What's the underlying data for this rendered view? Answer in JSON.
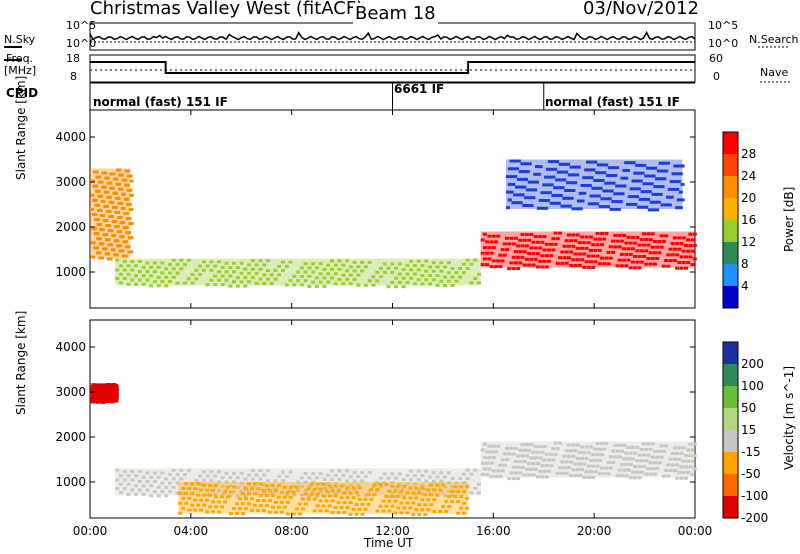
{
  "header": {
    "station_title": "Christmas Valley West (fitACF)",
    "beam": "Beam 18",
    "date": "03/Nov/2012"
  },
  "top_panels": {
    "nsky_label": "N.Sky",
    "nsearch_label": "N.Search",
    "nsky_ticks": [
      "10^5",
      "10^0"
    ],
    "nsearch_ticks": [
      "10^5",
      "10^0"
    ],
    "freq_label": "Freq.",
    "freq_unit": "[MHz]",
    "freq_ticks": [
      "18",
      "8"
    ],
    "nave_label": "Nave",
    "nave_ticks": [
      "60",
      "0"
    ],
    "cpid_label": "CPID",
    "cpid_segments": [
      {
        "label": "normal (fast) 151 IF",
        "start": 0,
        "end": 12
      },
      {
        "label": "6661 IF",
        "start": 12,
        "end": 18
      },
      {
        "label": "normal (fast) 151 IF",
        "start": 18,
        "end": 24
      }
    ]
  },
  "chart_data": [
    {
      "type": "heatmap",
      "quantity": "Power",
      "xlabel": "Time UT",
      "ylabel": "Slant Range [km]",
      "xlim": [
        0,
        24
      ],
      "ylim": [
        200,
        4600
      ],
      "x_ticks": [
        "00:00",
        "04:00",
        "08:00",
        "12:00",
        "16:00",
        "20:00",
        "00:00"
      ],
      "y_ticks": [
        1000,
        2000,
        3000,
        4000
      ],
      "colorbar": {
        "label": "Power [dB]",
        "ticks": [
          "28",
          "24",
          "20",
          "16",
          "12",
          "8",
          "4"
        ],
        "colors": [
          "#ff0000",
          "#ff4500",
          "#ff8c00",
          "#ffb300",
          "#9acd32",
          "#2e8b57",
          "#1e90ff",
          "#0000cd"
        ]
      },
      "features": [
        {
          "name": "main scatter band",
          "time_range": [
            1.0,
            15.5
          ],
          "range_km": [
            700,
            1300
          ],
          "power_db": 16
        },
        {
          "name": "dawn echoes",
          "time_range": [
            0.0,
            1.6
          ],
          "range_km": [
            1300,
            3300
          ],
          "power_db": 22
        },
        {
          "name": "post-16UT strong band",
          "time_range": [
            15.5,
            24.0
          ],
          "range_km": [
            1100,
            1900
          ],
          "power_db": 28
        },
        {
          "name": "evening arc",
          "time_range": [
            16.5,
            23.5
          ],
          "range_km": [
            2400,
            3500
          ],
          "power_db": 6
        }
      ]
    },
    {
      "type": "heatmap",
      "quantity": "Velocity",
      "xlabel": "Time UT",
      "ylabel": "Slant Range [km]",
      "xlim": [
        0,
        24
      ],
      "ylim": [
        200,
        4600
      ],
      "x_ticks": [
        "00:00",
        "04:00",
        "08:00",
        "12:00",
        "16:00",
        "20:00",
        "00:00"
      ],
      "y_ticks": [
        1000,
        2000,
        3000,
        4000
      ],
      "colorbar": {
        "label": "Velocity [m s^-1]",
        "ticks": [
          "200",
          "100",
          "50",
          "15",
          "-15",
          "-50",
          "-100",
          "-200"
        ],
        "colors": [
          "#1e2fa0",
          "#2e8b57",
          "#6abf3a",
          "#b0d880",
          "#c8c8c0",
          "#ffa500",
          "#ff6a00",
          "#e00000"
        ]
      },
      "features": [
        {
          "name": "ground scatter band",
          "time_range": [
            1.0,
            15.5
          ],
          "range_km": [
            700,
            1300
          ],
          "velocity": 0
        },
        {
          "name": "dawn echoes",
          "time_range": [
            0.0,
            1.0
          ],
          "range_km": [
            2800,
            3200
          ],
          "velocity": -200
        },
        {
          "name": "post-16UT band",
          "time_range": [
            15.5,
            24.0
          ],
          "range_km": [
            1100,
            1900
          ],
          "velocity": 0
        },
        {
          "name": "negative velocity patch",
          "time_range": [
            3.5,
            15.0
          ],
          "range_km": [
            300,
            1000
          ],
          "velocity": -50
        }
      ]
    }
  ]
}
